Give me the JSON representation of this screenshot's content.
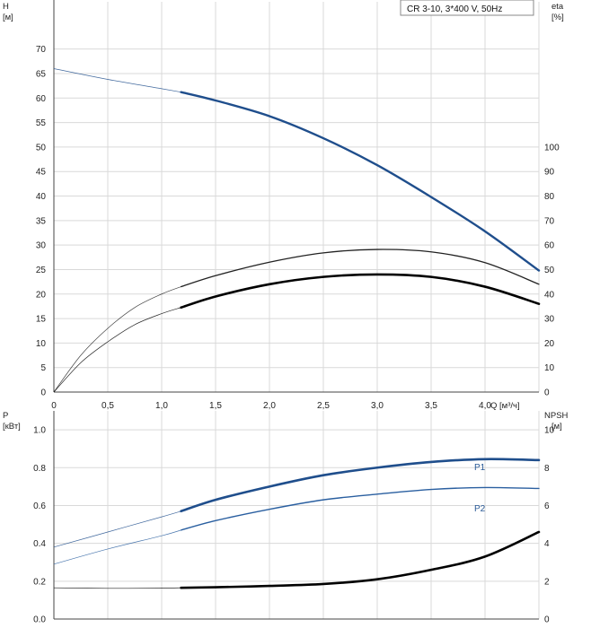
{
  "chart_data": [
    {
      "type": "line",
      "title": "",
      "legend": "CR 3-10, 3*400 V, 50Hz",
      "x_unit": "Q [м³/ч]",
      "x_ticks": [
        "0",
        "0,5",
        "1,0",
        "1,5",
        "2,0",
        "2,5",
        "3,0",
        "3,5",
        "4,0"
      ],
      "xlim": [
        0,
        4.5
      ],
      "y_left": {
        "label": "H",
        "unit": "[м]",
        "ticks": [
          "0",
          "5",
          "10",
          "15",
          "20",
          "25",
          "30",
          "35",
          "40",
          "45",
          "50",
          "55",
          "60",
          "65",
          "70"
        ],
        "ylim": [
          0,
          80
        ]
      },
      "y_right": {
        "label": "eta",
        "unit": "[%]",
        "ticks": [
          "0",
          "10",
          "20",
          "30",
          "40",
          "50",
          "60",
          "70",
          "80",
          "90",
          "100"
        ],
        "ylim": [
          0,
          160
        ]
      },
      "grid": true,
      "series": [
        {
          "name": "",
          "axis": "left",
          "color": "#1f4e8c",
          "x": [
            0,
            0.5,
            1.0,
            1.18,
            1.5,
            2.0,
            2.5,
            3.0,
            3.5,
            4.0,
            4.5
          ],
          "y": [
            66,
            63.8,
            61.9,
            61.2,
            59.5,
            56.3,
            51.8,
            46.3,
            39.8,
            32.8,
            24.8
          ]
        },
        {
          "name": "",
          "axis": "right",
          "color": "#222222",
          "x": [
            0,
            0.25,
            0.5,
            0.75,
            1.0,
            1.18,
            1.5,
            2.0,
            2.5,
            3.0,
            3.5,
            4.0,
            4.5
          ],
          "y": [
            0,
            15,
            26,
            34.5,
            40,
            43,
            47.5,
            53,
            56.8,
            58.2,
            57.2,
            52.8,
            44
          ]
        },
        {
          "name": "",
          "axis": "right",
          "color": "#000000",
          "x": [
            0,
            0.25,
            0.5,
            0.75,
            1.0,
            1.18,
            1.5,
            2.0,
            2.5,
            3.0,
            3.5,
            4.0,
            4.5
          ],
          "y": [
            0,
            12,
            20.5,
            27.5,
            32,
            34.5,
            39,
            44,
            47,
            48,
            47,
            43,
            36
          ]
        }
      ]
    },
    {
      "type": "line",
      "title": "",
      "x_unit": "Q [м³/ч]",
      "xlim": [
        0,
        4.5
      ],
      "y_left": {
        "label": "P",
        "unit": "[кВт]",
        "ticks": [
          "0.0",
          "0.2",
          "0.4",
          "0.6",
          "0.8",
          "1.0"
        ],
        "ylim": [
          0,
          1.1
        ]
      },
      "y_right": {
        "label": "NPSH",
        "unit": "[м]",
        "ticks": [
          "0",
          "2",
          "4",
          "6",
          "8",
          "10"
        ],
        "ylim": [
          0,
          11
        ]
      },
      "grid": true,
      "series": [
        {
          "name": "P1",
          "axis": "left",
          "color": "#1f4e8c",
          "x": [
            0,
            0.5,
            1.0,
            1.18,
            1.5,
            2.0,
            2.5,
            3.0,
            3.5,
            4.0,
            4.5
          ],
          "y": [
            0.38,
            0.46,
            0.54,
            0.57,
            0.63,
            0.7,
            0.76,
            0.8,
            0.83,
            0.845,
            0.84
          ]
        },
        {
          "name": "P2",
          "axis": "left",
          "color": "#2a5fa0",
          "x": [
            0,
            0.5,
            1.0,
            1.18,
            1.5,
            2.0,
            2.5,
            3.0,
            3.5,
            4.0,
            4.5
          ],
          "y": [
            0.29,
            0.37,
            0.44,
            0.47,
            0.52,
            0.58,
            0.63,
            0.66,
            0.685,
            0.695,
            0.69
          ]
        },
        {
          "name": "",
          "axis": "right",
          "color": "#000000",
          "x": [
            0,
            0.5,
            1.0,
            1.18,
            1.5,
            2.0,
            2.5,
            3.0,
            3.5,
            4.0,
            4.5
          ],
          "y": [
            1.65,
            1.62,
            1.63,
            1.65,
            1.68,
            1.75,
            1.85,
            2.1,
            2.6,
            3.3,
            4.6
          ]
        }
      ]
    }
  ]
}
